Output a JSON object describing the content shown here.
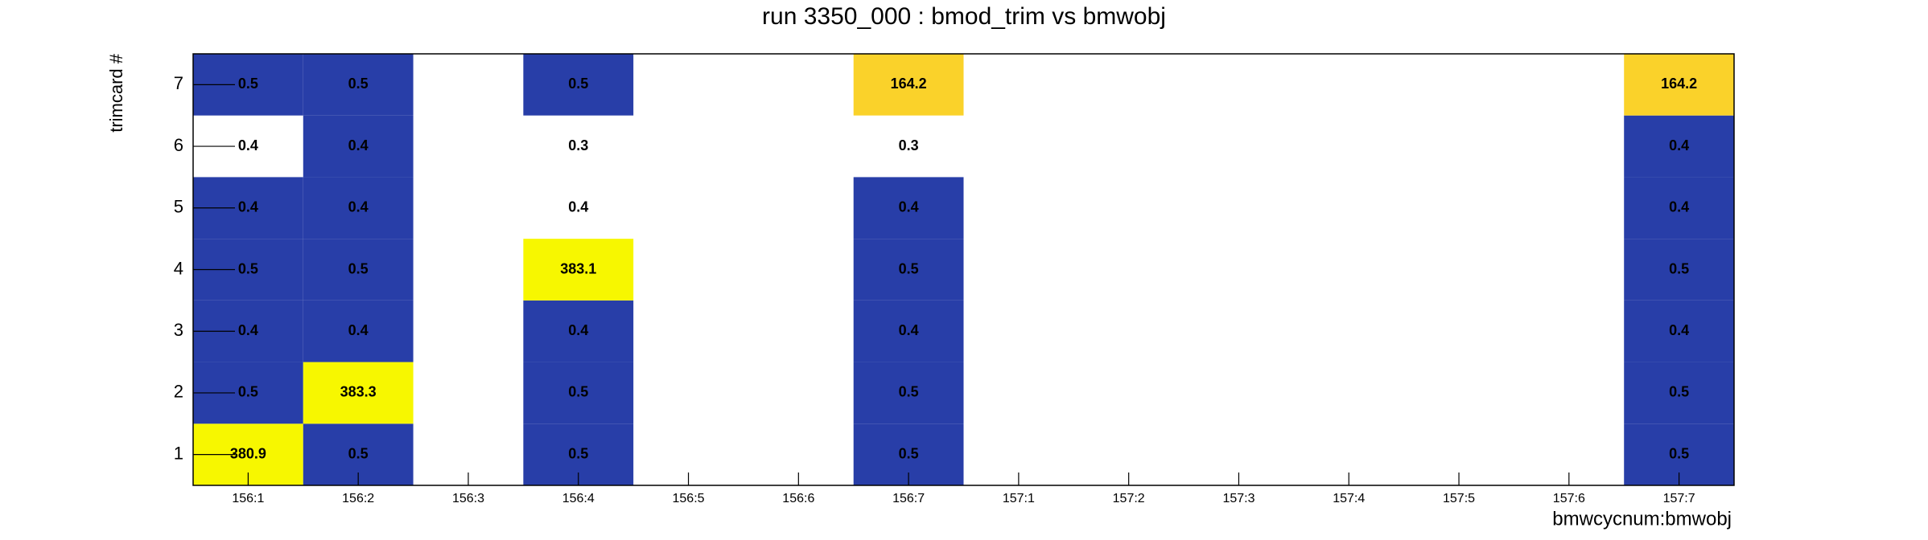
{
  "chart_data": {
    "type": "heatmap",
    "title": "run 3350_000 : bmod_trim vs bmwobj",
    "x_label": "bmwcycnum:bmwobj",
    "y_label": "trimcard #",
    "x_categories": [
      "156:1",
      "156:2",
      "156:3",
      "156:4",
      "156:5",
      "156:6",
      "156:7",
      "157:1",
      "157:2",
      "157:3",
      "157:4",
      "157:5",
      "157:6",
      "157:7"
    ],
    "y_categories": [
      "1",
      "2",
      "3",
      "4",
      "5",
      "6",
      "7"
    ],
    "values": [
      [
        380.9,
        0.5,
        null,
        0.5,
        null,
        null,
        0.5,
        null,
        null,
        null,
        null,
        null,
        null,
        0.5
      ],
      [
        0.5,
        383.3,
        null,
        0.5,
        null,
        null,
        0.5,
        null,
        null,
        null,
        null,
        null,
        null,
        0.5
      ],
      [
        0.4,
        0.4,
        null,
        0.4,
        null,
        null,
        0.4,
        null,
        null,
        null,
        null,
        null,
        null,
        0.4
      ],
      [
        0.5,
        0.5,
        null,
        383.1,
        null,
        null,
        0.5,
        null,
        null,
        null,
        null,
        null,
        null,
        0.5
      ],
      [
        0.4,
        0.4,
        null,
        0.4,
        null,
        null,
        0.4,
        null,
        null,
        null,
        null,
        null,
        null,
        0.4
      ],
      [
        0.4,
        0.4,
        null,
        0.3,
        null,
        null,
        0.3,
        null,
        null,
        null,
        null,
        null,
        null,
        0.4
      ],
      [
        0.5,
        0.5,
        null,
        0.5,
        null,
        null,
        164.2,
        null,
        null,
        null,
        null,
        null,
        null,
        164.2
      ]
    ],
    "colors": [
      [
        "#f7f700",
        "#283ea8",
        null,
        "#283ea8",
        null,
        null,
        "#283ea8",
        null,
        null,
        null,
        null,
        null,
        null,
        "#283ea8"
      ],
      [
        "#283ea8",
        "#f7f700",
        null,
        "#283ea8",
        null,
        null,
        "#283ea8",
        null,
        null,
        null,
        null,
        null,
        null,
        "#283ea8"
      ],
      [
        "#283ea8",
        "#283ea8",
        null,
        "#283ea8",
        null,
        null,
        "#283ea8",
        null,
        null,
        null,
        null,
        null,
        null,
        "#283ea8"
      ],
      [
        "#283ea8",
        "#283ea8",
        null,
        "#f7f700",
        null,
        null,
        "#283ea8",
        null,
        null,
        null,
        null,
        null,
        null,
        "#283ea8"
      ],
      [
        "#283ea8",
        "#283ea8",
        null,
        null,
        null,
        null,
        "#283ea8",
        null,
        null,
        null,
        null,
        null,
        null,
        "#283ea8"
      ],
      [
        null,
        "#283ea8",
        null,
        null,
        null,
        null,
        null,
        null,
        null,
        null,
        null,
        null,
        null,
        "#283ea8"
      ],
      [
        "#283ea8",
        "#283ea8",
        null,
        "#283ea8",
        null,
        null,
        "#fad22a",
        null,
        null,
        null,
        null,
        null,
        null,
        "#fad22a"
      ]
    ]
  }
}
